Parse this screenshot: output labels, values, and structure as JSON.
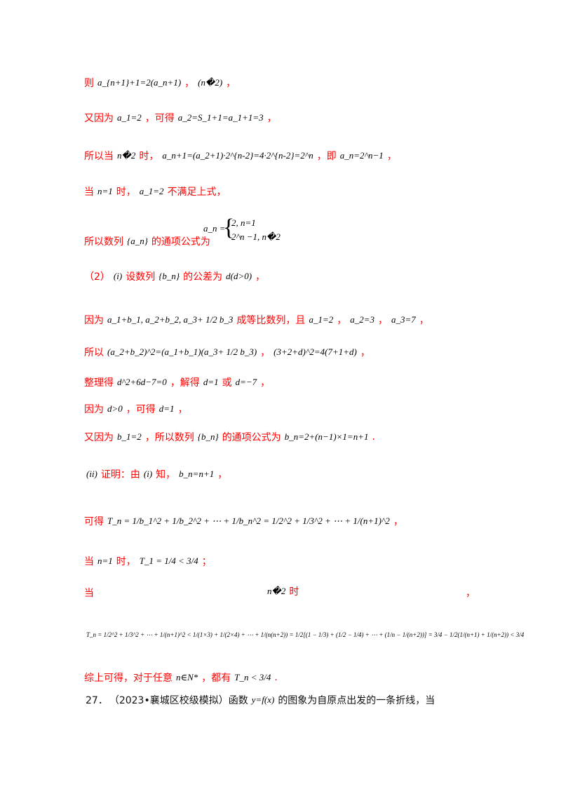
{
  "lines": [
    {
      "red1": "则",
      "m1": "a_{n+1}+1=2(a_n+1)",
      "red2": "，",
      "m2": "(n�2)",
      "red3": "，"
    },
    {
      "red1": "又因为",
      "m1": "a_1=2",
      "red2": "，可得",
      "m2": "a_2=S_1+1=a_1+1=3",
      "red3": "，"
    },
    {
      "red1": "所以当",
      "m1": "n�2",
      "red2": "时，",
      "m2": "a_n+1=(a_2+1)·2^{n-2}=4·2^{n-2}=2^n",
      "red3": "，即",
      "m3": "a_n=2^n−1",
      "red4": "，"
    },
    {
      "red1": "当",
      "m1": "n=1",
      "red2": "时，",
      "m2": "a_1=2",
      "red3": "不满足上式，"
    },
    {
      "red1": "所以数列",
      "m1": "{a_n}",
      "red2": "的通项公式为",
      "m_lhs": "a_n =",
      "case1": "2, n=1",
      "case2": "2^n −1, n�2"
    },
    {
      "red1": "（2）",
      "m1": "(i)",
      "red2": "设数列",
      "m2": "{b_n}",
      "red3": "的公差为",
      "m3": "d(d>0)",
      "red4": "，"
    },
    {
      "red1": "因为",
      "m1": "a_1+b_1, a_2+b_2, a_3+ 1/2 b_3",
      "red2": "成等比数列，且",
      "m2": "a_1=2",
      "red3": "，",
      "m3": "a_2=3",
      "red4": "，",
      "m4": "a_3=7",
      "red5": "，"
    },
    {
      "red1": "所以",
      "m1": "(a_2+b_2)^2=(a_1+b_1)(a_3+ 1/2 b_3)",
      "red2": "，",
      "m2": "(3+2+d)^2=4(7+1+d)",
      "red3": "，"
    },
    {
      "red1": "整理得",
      "m1": "d^2+6d−7=0",
      "red2": "，解得",
      "m2": "d=1",
      "red3": "或",
      "m3": "d=−7",
      "red4": "，"
    },
    {
      "red1": "因为",
      "m1": "d>0",
      "red2": "，可得",
      "m2": "d=1",
      "red3": "，"
    },
    {
      "red1": "又因为",
      "m1": "b_1=2",
      "red2": "，所以数列",
      "m2": "{b_n}",
      "red3": "的通项公式为",
      "m3": "b_n=2+(n−1)×1=n+1",
      "red4": "."
    },
    {
      "m1": "(ii)",
      "red1": "证明：由",
      "m2": "(i)",
      "red2": "知，",
      "m3": "b_n=n+1",
      "red3": "，"
    },
    {
      "red1": "可得",
      "m1": "T_n = 1/b_1^2 + 1/b_2^2 + ⋯ + 1/b_n^2 = 1/2^2 + 1/3^2 + ⋯ + 1/(n+1)^2",
      "red2": "，"
    },
    {
      "red1": "当",
      "m1": "n=1",
      "red2": "时，",
      "m2": "T_1 = 1/4 < 3/4",
      "red3": "；"
    },
    {
      "red1": "当",
      "m1": "n�2",
      "red2": "时",
      "red3": "，"
    },
    {
      "m1": "T_n = 1/2^2 + 1/3^2 + ⋯ + 1/(n+1)^2 < 1/(1×3) + 1/(2×4) + ⋯ + 1/(n(n+2)) = 1/2[(1 − 1/3) + (1/2 − 1/4) + ⋯ + (1/n − 1/(n+2))] = 3/4 − 1/2(1/(n+1) + 1/(n+2)) < 3/4"
    },
    {
      "red1": "综上可得，对于任意",
      "m1": "n∈N*",
      "red2": "，都有",
      "m2": "T_n < 3/4",
      "red3": "."
    }
  ],
  "problem27": {
    "num": "27．",
    "source": "（2023•襄城区校级模拟）函数",
    "m1": "y=f(x)",
    "text": "的图象为自原点出发的一条折线，当"
  }
}
